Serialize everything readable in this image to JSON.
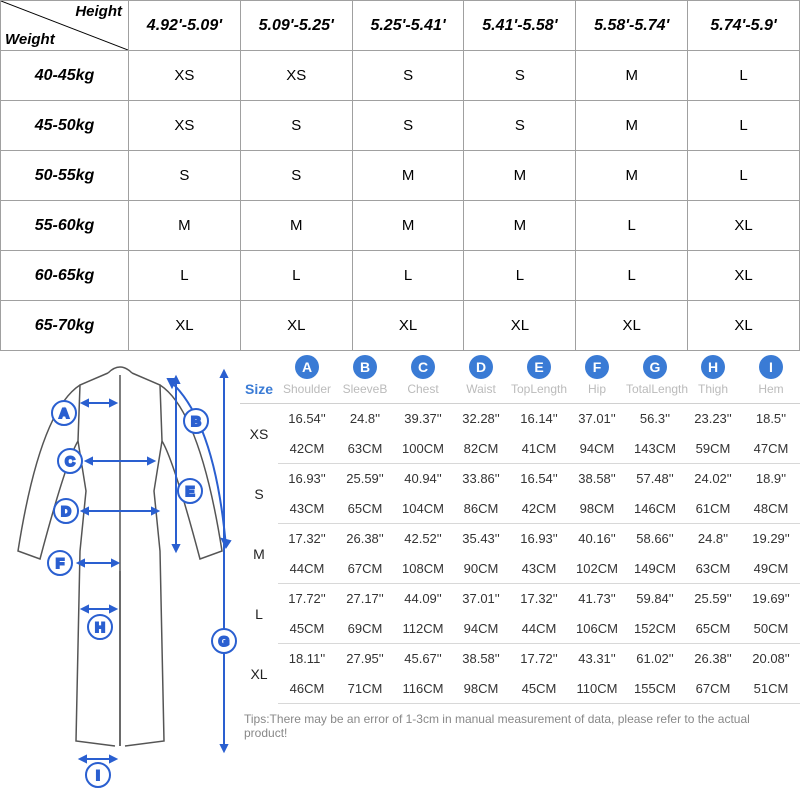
{
  "header": {
    "heightLabel": "Height",
    "weightLabel": "Weight"
  },
  "heights": [
    "4.92'-5.09'",
    "5.09'-5.25'",
    "5.25'-5.41'",
    "5.41'-5.58'",
    "5.58'-5.74'",
    "5.74'-5.9'"
  ],
  "weights": [
    "40-45kg",
    "45-50kg",
    "50-55kg",
    "55-60kg",
    "60-65kg",
    "65-70kg"
  ],
  "rec": [
    [
      "XS",
      "XS",
      "S",
      "S",
      "M",
      "L"
    ],
    [
      "XS",
      "S",
      "S",
      "S",
      "M",
      "L"
    ],
    [
      "S",
      "S",
      "M",
      "M",
      "M",
      "L"
    ],
    [
      "M",
      "M",
      "M",
      "M",
      "L",
      "XL"
    ],
    [
      "L",
      "L",
      "L",
      "L",
      "L",
      "XL"
    ],
    [
      "XL",
      "XL",
      "XL",
      "XL",
      "XL",
      "XL"
    ]
  ],
  "badges": [
    "A",
    "B",
    "C",
    "D",
    "E",
    "F",
    "G",
    "H",
    "I"
  ],
  "measNames": [
    "Shoulder",
    "SleeveB",
    "Chest",
    "Waist",
    "TopLength",
    "Hip",
    "TotalLength",
    "Thigh",
    "Hem"
  ],
  "sizeLabel": "Size",
  "sizes": [
    {
      "name": "XS",
      "in": [
        "16.54''",
        "24.8''",
        "39.37''",
        "32.28''",
        "16.14''",
        "37.01''",
        "56.3''",
        "23.23''",
        "18.5''"
      ],
      "cm": [
        "42CM",
        "63CM",
        "100CM",
        "82CM",
        "41CM",
        "94CM",
        "143CM",
        "59CM",
        "47CM"
      ]
    },
    {
      "name": "S",
      "in": [
        "16.93''",
        "25.59''",
        "40.94''",
        "33.86''",
        "16.54''",
        "38.58''",
        "57.48''",
        "24.02''",
        "18.9''"
      ],
      "cm": [
        "43CM",
        "65CM",
        "104CM",
        "86CM",
        "42CM",
        "98CM",
        "146CM",
        "61CM",
        "48CM"
      ]
    },
    {
      "name": "M",
      "in": [
        "17.32''",
        "26.38''",
        "42.52''",
        "35.43''",
        "16.93''",
        "40.16''",
        "58.66''",
        "24.8''",
        "19.29''"
      ],
      "cm": [
        "44CM",
        "67CM",
        "108CM",
        "90CM",
        "43CM",
        "102CM",
        "149CM",
        "63CM",
        "49CM"
      ]
    },
    {
      "name": "L",
      "in": [
        "17.72''",
        "27.17''",
        "44.09''",
        "37.01''",
        "17.32''",
        "41.73''",
        "59.84''",
        "25.59''",
        "19.69''"
      ],
      "cm": [
        "45CM",
        "69CM",
        "112CM",
        "94CM",
        "44CM",
        "106CM",
        "152CM",
        "65CM",
        "50CM"
      ]
    },
    {
      "name": "XL",
      "in": [
        "18.11''",
        "27.95''",
        "45.67''",
        "38.58''",
        "17.72''",
        "43.31''",
        "61.02''",
        "26.38''",
        "20.08''"
      ],
      "cm": [
        "46CM",
        "71CM",
        "116CM",
        "98CM",
        "45CM",
        "110CM",
        "155CM",
        "67CM",
        "51CM"
      ]
    }
  ],
  "tips": "Tips:There may be an error of 1-3cm in manual measurement of data, please refer to the actual product!",
  "colors": {
    "accent": "#3a7bd5",
    "border": "#a0a0a0",
    "lightBorder": "#d0d0d0",
    "muted": "#bbbbbb"
  }
}
